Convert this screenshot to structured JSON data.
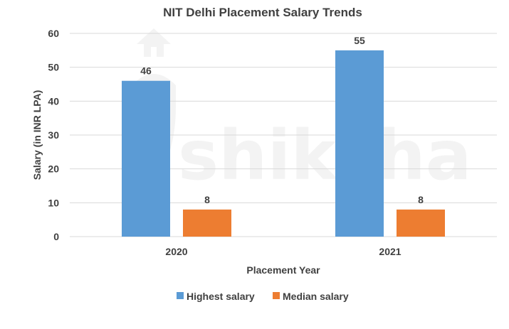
{
  "chart_data": {
    "type": "bar",
    "title": "NIT Delhi Placement Salary Trends",
    "xlabel": "Placement Year",
    "ylabel": "Salary (in INR LPA)",
    "categories": [
      "2020",
      "2021"
    ],
    "ylim": [
      0,
      60
    ],
    "yticks": [
      0,
      10,
      20,
      30,
      40,
      50,
      60
    ],
    "grid": true,
    "legend_position": "bottom",
    "series": [
      {
        "name": "Highest salary",
        "values": [
          46,
          55
        ],
        "color": "#5B9BD5"
      },
      {
        "name": "Median salary",
        "values": [
          8,
          8
        ],
        "color": "#ED7D31"
      }
    ]
  },
  "watermark": {
    "text": "shiksha"
  }
}
